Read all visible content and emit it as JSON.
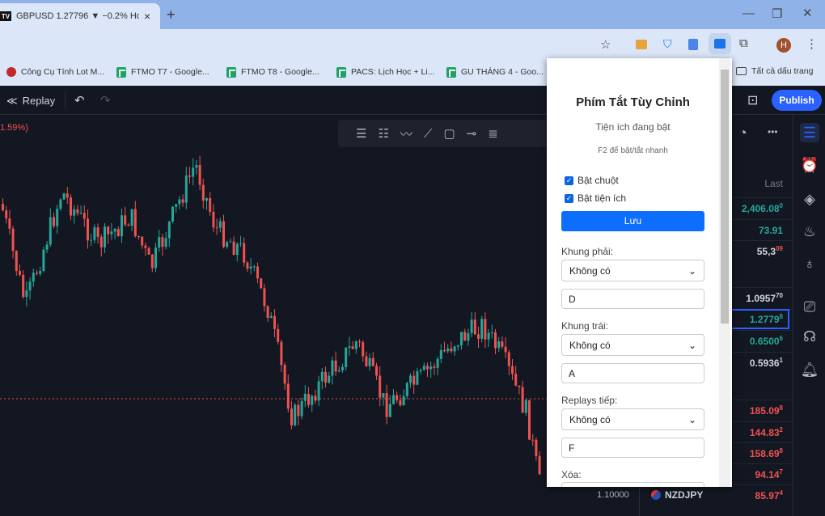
{
  "browser": {
    "tab_title": "GBPUSD 1.27796 ▼ −0.2% Ho:",
    "tab_logo": "TV",
    "new_tab": "+",
    "close": "×",
    "bookmarks": [
      "Công Cụ Tính Lot M...",
      "FTMO T7 - Google...",
      "FTMO T8 - Google...",
      "PACS: Lịch Học + Li...",
      "GU THÁNG 4 - Goo..."
    ],
    "all_bookmarks": "Tất cả dấu trang",
    "profile_initial": "H"
  },
  "toolbar": {
    "replay": "Replay",
    "publish": "Publish",
    "change_pct": "1.59%)"
  },
  "chart": {
    "price_label": "1.10000",
    "colors": {
      "up": "#26a69a",
      "down": "#ef5350"
    }
  },
  "watchlist": {
    "header": "Last",
    "rows": [
      {
        "value": "2,406.08",
        "sup": "0",
        "color": "#26a69a"
      },
      {
        "value": "73.91",
        "sup": "",
        "color": "#26a69a"
      },
      {
        "value": "55,3",
        "sup": "09",
        "color": "#d1d4dc",
        "supcolor": "#ef5350"
      },
      {
        "value": "1.0957",
        "sup": "70",
        "color": "#d1d4dc"
      },
      {
        "value": "1.2779",
        "sup": "8",
        "color": "#26a69a",
        "selected": true
      },
      {
        "value": "0.6500",
        "sup": "6",
        "color": "#26a69a"
      },
      {
        "value": "0.5936",
        "sup": "1",
        "color": "#d1d4dc"
      },
      {
        "value": "185.09",
        "sup": "8",
        "color": "#ef5350"
      },
      {
        "value": "144.83",
        "sup": "2",
        "color": "#ef5350"
      },
      {
        "value": "158.69",
        "sup": "8",
        "color": "#ef5350"
      },
      {
        "value": "94.14",
        "sup": "7",
        "color": "#ef5350"
      },
      {
        "symbol": "NZDJPY",
        "value": "85.97",
        "sup": "4",
        "color": "#ef5350"
      }
    ]
  },
  "popup": {
    "title": "Phím Tắt Tùy Chỉnh",
    "status": "Tiện ích đang bật",
    "hint": "F2 để bật/tắt nhanh",
    "checkboxes": [
      {
        "label": "Bật chuột",
        "checked": true
      },
      {
        "label": "Bật tiện ích",
        "checked": true
      }
    ],
    "save": "Lưu",
    "fields": [
      {
        "label": "Khung phải:",
        "select": "Không có",
        "key": "D"
      },
      {
        "label": "Khung trái:",
        "select": "Không có",
        "key": "A"
      },
      {
        "label": "Replays tiếp:",
        "select": "Không có",
        "key": "F"
      },
      {
        "label": "Xóa:"
      }
    ]
  }
}
